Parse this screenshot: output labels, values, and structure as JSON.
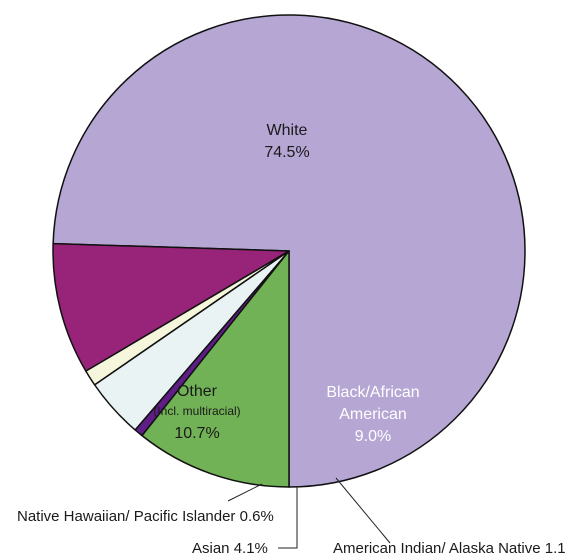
{
  "chart_data": {
    "type": "pie",
    "slices": [
      {
        "name": "White",
        "value": 74.5,
        "value_label": "74.5%",
        "color": "#b6a6d4",
        "label_color": "#1a1a1a"
      },
      {
        "name": "Black/African American",
        "name_lines": [
          "Black/African",
          "American"
        ],
        "value": 9.0,
        "value_label": "9.0%",
        "color": "#982479",
        "label_color": "#ffffff"
      },
      {
        "name": "American Indian/ Alaska Native",
        "value": 1.1,
        "value_label": "1.1%",
        "color": "#f6f6dc",
        "label_color": "#1a1a1a"
      },
      {
        "name": "Asian",
        "value": 4.1,
        "value_label": "4.1%",
        "color": "#e9f3f3",
        "label_color": "#1a1a1a"
      },
      {
        "name": "Native Hawaiian/ Pacific Islander",
        "value": 0.6,
        "value_label": "0.6%",
        "color": "#5f1d86",
        "label_color": "#1a1a1a"
      },
      {
        "name": "Other",
        "subtitle": "(Incl. multiracial)",
        "value": 10.7,
        "value_label": "10.7%",
        "color": "#72b256",
        "label_color": "#1a1a1a"
      }
    ],
    "start": "bottom-center",
    "direction": "counterclockwise",
    "labels": {
      "white_name": "White",
      "white_value": "74.5%",
      "black_line1": "Black/African",
      "black_line2": "American",
      "black_value": "9.0%",
      "other_name": "Other",
      "other_sub": "(Incl. multiracial)",
      "other_value": "10.7%",
      "nhpi": "Native Hawaiian/ Pacific Islander 0.6%",
      "asian": "Asian 4.1%",
      "aian": "American Indian/ Alaska Native 1.1%"
    }
  }
}
